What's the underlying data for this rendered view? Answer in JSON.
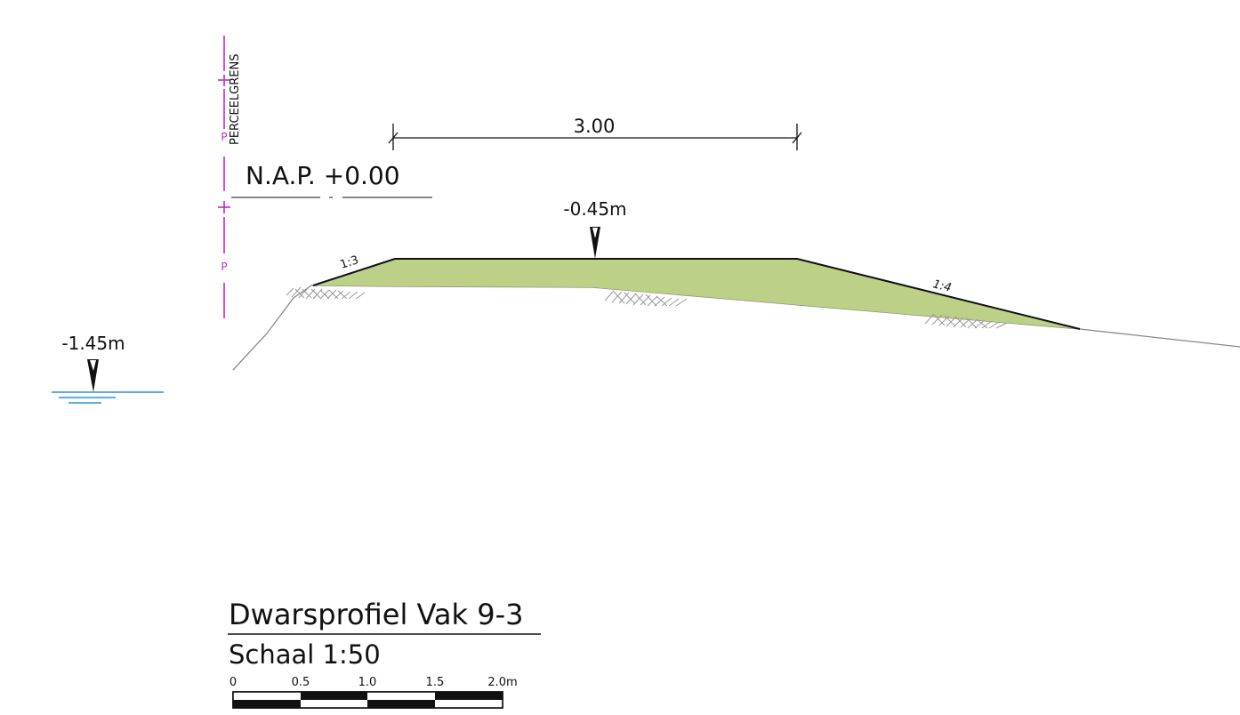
{
  "title": "Dwarsprofiel Vak 9-3",
  "scale_label": "Schaal 1:50",
  "boundary_label": "PERCEELGRENS",
  "boundary_marker": "P",
  "reference_level": "N.A.P.  +0.00",
  "crest_width": "3.00",
  "crest_level": "-0.45m",
  "water_level": "-1.45m",
  "slope_left": "1:3",
  "slope_right": "1:4",
  "scale_bar": {
    "ticks": [
      "0",
      "0.5",
      "1.0",
      "1.5",
      "2.0m"
    ]
  },
  "colors": {
    "fill": "#bcd087",
    "boundary": "#c02ac0",
    "water": "#2a8fd8",
    "ground": "#8a8a8a",
    "ink": "#111111"
  }
}
